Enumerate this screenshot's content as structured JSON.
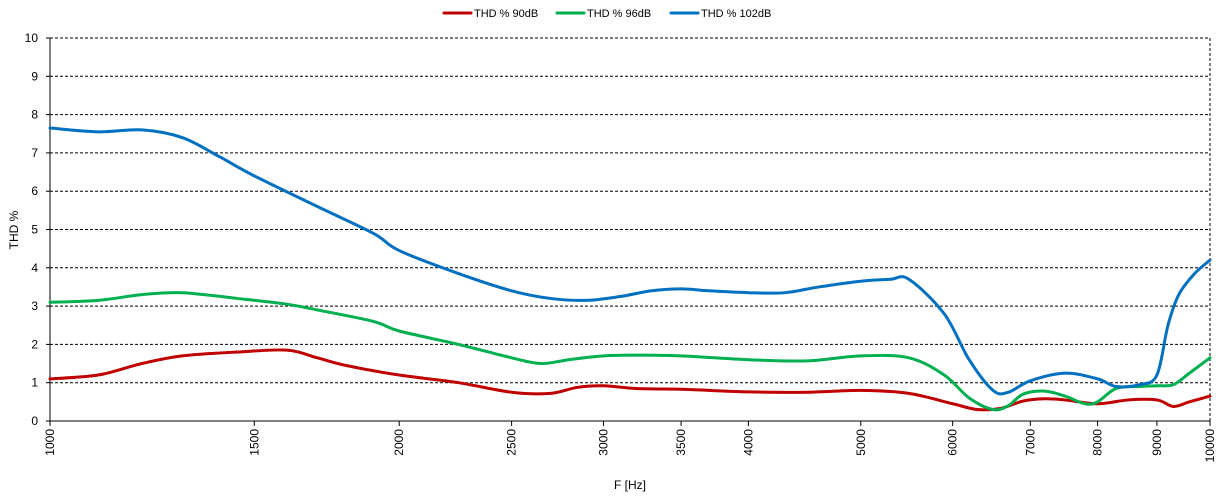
{
  "chart_data": {
    "type": "line",
    "xlabel": "F [Hz]",
    "ylabel": "THD %",
    "x_scale": "log",
    "xlim": [
      1000,
      10000
    ],
    "ylim": [
      0,
      10
    ],
    "y_ticks": [
      0,
      1,
      2,
      3,
      4,
      5,
      6,
      7,
      8,
      9,
      10
    ],
    "x_ticks": [
      1000,
      1500,
      2000,
      2500,
      3000,
      3500,
      4000,
      5000,
      6000,
      7000,
      8000,
      9000,
      10000
    ],
    "grid": "horizontal-dashed",
    "legend": "top-center",
    "series": [
      {
        "name": "THD % 90dB",
        "color": "#c00000",
        "points": [
          [
            1000,
            1.1
          ],
          [
            1100,
            1.2
          ],
          [
            1200,
            1.5
          ],
          [
            1300,
            1.7
          ],
          [
            1450,
            1.8
          ],
          [
            1600,
            1.85
          ],
          [
            1700,
            1.65
          ],
          [
            1800,
            1.45
          ],
          [
            2000,
            1.2
          ],
          [
            2250,
            1.0
          ],
          [
            2500,
            0.75
          ],
          [
            2700,
            0.72
          ],
          [
            2850,
            0.88
          ],
          [
            3000,
            0.92
          ],
          [
            3200,
            0.85
          ],
          [
            3500,
            0.83
          ],
          [
            3700,
            0.8
          ],
          [
            4000,
            0.76
          ],
          [
            4500,
            0.75
          ],
          [
            5000,
            0.8
          ],
          [
            5500,
            0.72
          ],
          [
            6000,
            0.45
          ],
          [
            6300,
            0.3
          ],
          [
            6600,
            0.33
          ],
          [
            6900,
            0.52
          ],
          [
            7200,
            0.58
          ],
          [
            7500,
            0.55
          ],
          [
            8000,
            0.45
          ],
          [
            8500,
            0.55
          ],
          [
            9000,
            0.55
          ],
          [
            9300,
            0.38
          ],
          [
            9600,
            0.5
          ],
          [
            10000,
            0.65
          ]
        ]
      },
      {
        "name": "THD % 96dB",
        "color": "#00b050",
        "points": [
          [
            1000,
            3.1
          ],
          [
            1100,
            3.15
          ],
          [
            1200,
            3.3
          ],
          [
            1300,
            3.35
          ],
          [
            1450,
            3.2
          ],
          [
            1600,
            3.05
          ],
          [
            1700,
            2.9
          ],
          [
            1900,
            2.6
          ],
          [
            2000,
            2.35
          ],
          [
            2250,
            2.0
          ],
          [
            2500,
            1.65
          ],
          [
            2650,
            1.5
          ],
          [
            2800,
            1.6
          ],
          [
            3000,
            1.7
          ],
          [
            3200,
            1.72
          ],
          [
            3500,
            1.7
          ],
          [
            4000,
            1.6
          ],
          [
            4500,
            1.57
          ],
          [
            5000,
            1.7
          ],
          [
            5500,
            1.65
          ],
          [
            5900,
            1.2
          ],
          [
            6200,
            0.6
          ],
          [
            6500,
            0.3
          ],
          [
            6700,
            0.4
          ],
          [
            6900,
            0.7
          ],
          [
            7200,
            0.78
          ],
          [
            7500,
            0.65
          ],
          [
            7800,
            0.45
          ],
          [
            8000,
            0.5
          ],
          [
            8300,
            0.85
          ],
          [
            8700,
            0.9
          ],
          [
            9000,
            0.92
          ],
          [
            9300,
            0.95
          ],
          [
            9600,
            1.25
          ],
          [
            10000,
            1.65
          ]
        ]
      },
      {
        "name": "THD % 102dB",
        "color": "#0070c0",
        "points": [
          [
            1000,
            7.65
          ],
          [
            1100,
            7.55
          ],
          [
            1200,
            7.6
          ],
          [
            1300,
            7.4
          ],
          [
            1400,
            6.9
          ],
          [
            1500,
            6.4
          ],
          [
            1700,
            5.6
          ],
          [
            1900,
            4.9
          ],
          [
            2000,
            4.45
          ],
          [
            2250,
            3.85
          ],
          [
            2500,
            3.4
          ],
          [
            2700,
            3.2
          ],
          [
            2900,
            3.15
          ],
          [
            3100,
            3.25
          ],
          [
            3300,
            3.4
          ],
          [
            3500,
            3.45
          ],
          [
            3700,
            3.4
          ],
          [
            4000,
            3.35
          ],
          [
            4300,
            3.35
          ],
          [
            4600,
            3.5
          ],
          [
            5000,
            3.65
          ],
          [
            5300,
            3.7
          ],
          [
            5500,
            3.7
          ],
          [
            5900,
            2.8
          ],
          [
            6200,
            1.6
          ],
          [
            6500,
            0.8
          ],
          [
            6700,
            0.75
          ],
          [
            7000,
            1.05
          ],
          [
            7500,
            1.25
          ],
          [
            8000,
            1.1
          ],
          [
            8300,
            0.9
          ],
          [
            8700,
            0.95
          ],
          [
            9000,
            1.2
          ],
          [
            9200,
            2.5
          ],
          [
            9400,
            3.3
          ],
          [
            9700,
            3.85
          ],
          [
            10000,
            4.2
          ]
        ]
      }
    ]
  }
}
